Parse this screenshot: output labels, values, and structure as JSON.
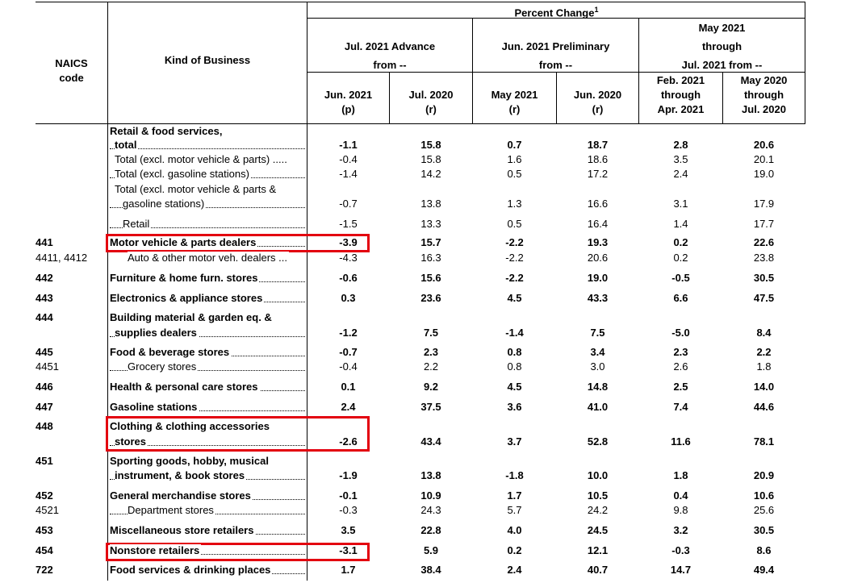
{
  "header": {
    "naics_1": "NAICS",
    "naics_2": "code",
    "kind": "Kind of Business",
    "pct_change": "Percent Change",
    "pct_sup": "1",
    "g1_1": "Jul. 2021 Advance",
    "g1_2": "from --",
    "g2_1": "Jun. 2021 Preliminary",
    "g2_2": "from --",
    "g3_1": "May 2021",
    "g3_2": "through",
    "g3_3": "Jul. 2021 from --",
    "c1_1": "Jun. 2021",
    "c1_2": "(p)",
    "c2_1": "Jul. 2020",
    "c2_2": "(r)",
    "c3_1": "May 2021",
    "c3_2": "(r)",
    "c4_1": "Jun. 2020",
    "c4_2": "(r)",
    "c5_1": "Feb. 2021",
    "c5_2": "through",
    "c5_3": "Apr. 2021",
    "c6_1": "May 2020",
    "c6_2": "through",
    "c6_3": "Jul. 2020"
  },
  "rows": [
    {
      "code": "",
      "name": "Retail & food services,",
      "values": [
        "",
        "",
        "",
        "",
        "",
        ""
      ],
      "bold": true
    },
    {
      "code": "",
      "name": "total",
      "values": [
        "-1.1",
        "15.8",
        "0.7",
        "18.7",
        "2.8",
        "20.6"
      ],
      "bold": true
    },
    {
      "code": "",
      "name": "Total (excl. motor vehicle & parts) .....",
      "values": [
        "-0.4",
        "15.8",
        "1.6",
        "18.6",
        "3.5",
        "20.1"
      ],
      "bold": false
    },
    {
      "code": "",
      "name": "Total (excl. gasoline stations)",
      "values": [
        "-1.4",
        "14.2",
        "0.5",
        "17.2",
        "2.4",
        "19.0"
      ],
      "bold": false
    },
    {
      "code": "",
      "name": "Total (excl. motor vehicle & parts &",
      "values": [
        "",
        "",
        "",
        "",
        "",
        ""
      ],
      "bold": false
    },
    {
      "code": "",
      "name": "gasoline stations)",
      "values": [
        "-0.7",
        "13.8",
        "1.3",
        "16.6",
        "3.1",
        "17.9"
      ],
      "bold": false
    },
    {
      "code": "",
      "name": "Retail",
      "values": [
        "-1.5",
        "13.3",
        "0.5",
        "16.4",
        "1.4",
        "17.7"
      ],
      "bold": false
    },
    {
      "code": "441",
      "name": "Motor vehicle & parts dealers",
      "values": [
        "-3.9",
        "15.7",
        "-2.2",
        "19.3",
        "0.2",
        "22.6"
      ],
      "bold": true
    },
    {
      "code": "4411, 4412",
      "name": "Auto & other motor veh. dealers ...",
      "values": [
        "-4.3",
        "16.3",
        "-2.2",
        "20.6",
        "0.2",
        "23.8"
      ],
      "bold": false
    },
    {
      "code": "442",
      "name": "Furniture & home furn. stores",
      "values": [
        "-0.6",
        "15.6",
        "-2.2",
        "19.0",
        "-0.5",
        "30.5"
      ],
      "bold": true
    },
    {
      "code": "443",
      "name": "Electronics & appliance stores",
      "values": [
        "0.3",
        "23.6",
        "4.5",
        "43.3",
        "6.6",
        "47.5"
      ],
      "bold": true
    },
    {
      "code": "444",
      "name": "Building material & garden eq. &",
      "values": [
        "",
        "",
        "",
        "",
        "",
        ""
      ],
      "bold": true
    },
    {
      "code": "",
      "name": "supplies dealers",
      "values": [
        "-1.2",
        "7.5",
        "-1.4",
        "7.5",
        "-5.0",
        "8.4"
      ],
      "bold": true
    },
    {
      "code": "445",
      "name": "Food & beverage stores",
      "values": [
        "-0.7",
        "2.3",
        "0.8",
        "3.4",
        "2.3",
        "2.2"
      ],
      "bold": true
    },
    {
      "code": "4451",
      "name": "Grocery stores",
      "values": [
        "-0.4",
        "2.2",
        "0.8",
        "3.0",
        "2.6",
        "1.8"
      ],
      "bold": false
    },
    {
      "code": "446",
      "name": "Health & personal care stores",
      "values": [
        "0.1",
        "9.2",
        "4.5",
        "14.8",
        "2.5",
        "14.0"
      ],
      "bold": true
    },
    {
      "code": "447",
      "name": "Gasoline stations",
      "values": [
        "2.4",
        "37.5",
        "3.6",
        "41.0",
        "7.4",
        "44.6"
      ],
      "bold": true
    },
    {
      "code": "448",
      "name": "Clothing & clothing accessories",
      "values": [
        "",
        "",
        "",
        "",
        "",
        ""
      ],
      "bold": true
    },
    {
      "code": "",
      "name": "stores",
      "values": [
        "-2.6",
        "43.4",
        "3.7",
        "52.8",
        "11.6",
        "78.1"
      ],
      "bold": true
    },
    {
      "code": "451",
      "name": "Sporting goods, hobby, musical",
      "values": [
        "",
        "",
        "",
        "",
        "",
        ""
      ],
      "bold": true
    },
    {
      "code": "",
      "name": "instrument, & book stores",
      "values": [
        "-1.9",
        "13.8",
        "-1.8",
        "10.0",
        "1.8",
        "20.9"
      ],
      "bold": true
    },
    {
      "code": "452",
      "name": "General merchandise stores",
      "values": [
        "-0.1",
        "10.9",
        "1.7",
        "10.5",
        "0.4",
        "10.6"
      ],
      "bold": true
    },
    {
      "code": "4521",
      "name": "Department stores",
      "values": [
        "-0.3",
        "24.3",
        "5.7",
        "24.2",
        "9.8",
        "25.6"
      ],
      "bold": false
    },
    {
      "code": "453",
      "name": "Miscellaneous store retailers",
      "values": [
        "3.5",
        "22.8",
        "4.0",
        "24.5",
        "3.2",
        "30.5"
      ],
      "bold": true
    },
    {
      "code": "454",
      "name": "Nonstore retailers",
      "values": [
        "-3.1",
        "5.9",
        "0.2",
        "12.1",
        "-0.3",
        "8.6"
      ],
      "bold": true
    },
    {
      "code": "722",
      "name": "Food services & drinking places",
      "values": [
        "1.7",
        "38.4",
        "2.4",
        "40.7",
        "14.7",
        "49.4"
      ],
      "bold": true
    }
  ]
}
